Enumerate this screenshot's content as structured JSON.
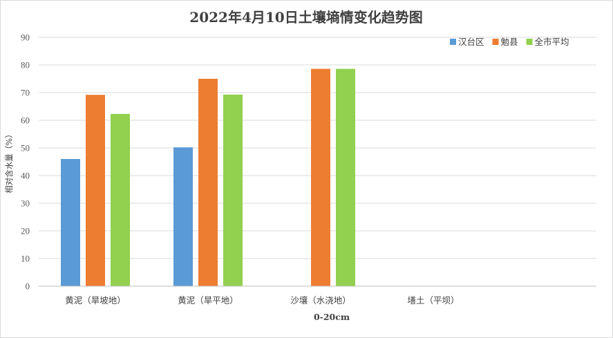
{
  "chart_data": {
    "type": "bar",
    "title": "2022年4月10日土壤墒情变化趋势图",
    "xlabel": "0-20cm",
    "ylabel": "相对含水量（%）",
    "ylim": [
      0,
      90
    ],
    "yticks": [
      0,
      10,
      20,
      30,
      40,
      50,
      60,
      70,
      80,
      90
    ],
    "grid": true,
    "legend_position": "top-right",
    "categories": [
      "黄泥（旱坡地）",
      "黄泥（旱平地）",
      "沙壤（水浇地）",
      "墡土（平坝）"
    ],
    "series": [
      {
        "name": "汉台区",
        "color": "#5B9BD5",
        "values": [
          46,
          50.2,
          null,
          null
        ]
      },
      {
        "name": "勉县",
        "color": "#ED7D31",
        "values": [
          69.2,
          75,
          78.6,
          null
        ]
      },
      {
        "name": "全市平均",
        "color": "#92D050",
        "values": [
          62.3,
          69.3,
          78.6,
          null
        ]
      }
    ]
  }
}
